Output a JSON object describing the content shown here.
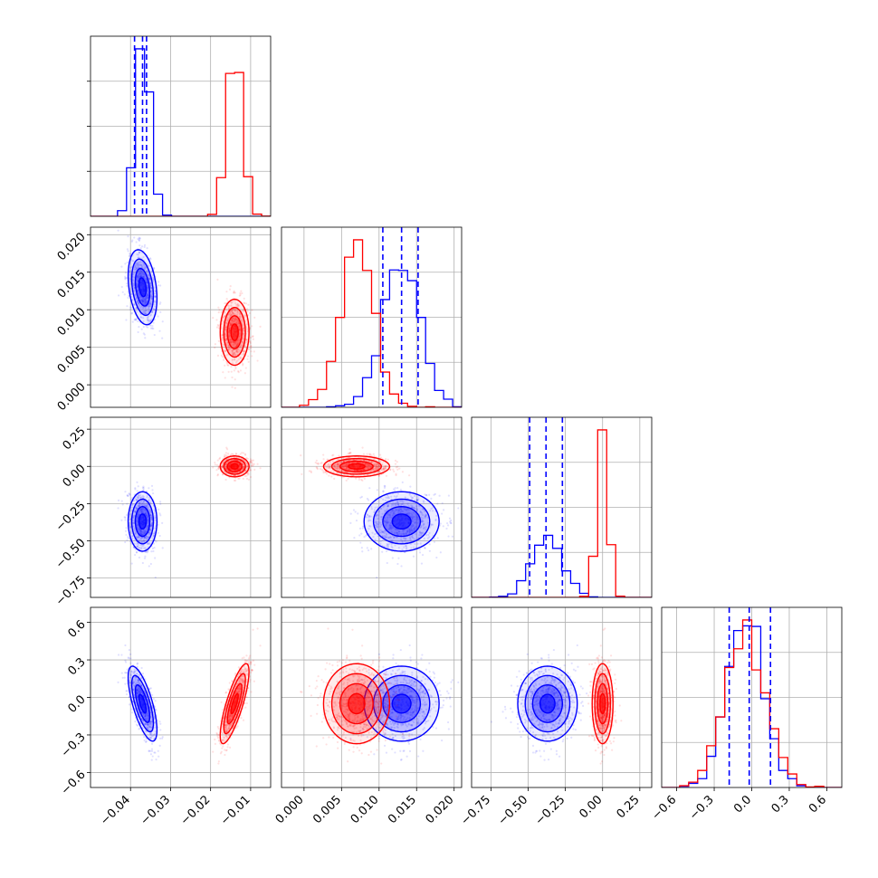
{
  "chart_data": {
    "type": "corner",
    "title": "",
    "grid": true,
    "params": [
      {
        "index": 0,
        "range": [
          -0.05,
          -0.005
        ],
        "ticks": [
          -0.04,
          -0.03,
          -0.02,
          -0.01
        ],
        "tick_labels": [
          "−0.04",
          "−0.03",
          "−0.02",
          "−0.01"
        ]
      },
      {
        "index": 1,
        "range": [
          -0.003,
          0.021
        ],
        "ticks": [
          0.0,
          0.005,
          0.01,
          0.015,
          0.02
        ],
        "tick_labels": [
          "0.000",
          "0.005",
          "0.010",
          "0.015",
          "0.020"
        ]
      },
      {
        "index": 2,
        "range": [
          -0.88,
          0.33
        ],
        "ticks": [
          -0.75,
          -0.5,
          -0.25,
          0.0,
          0.25
        ],
        "tick_labels": [
          "−0.75",
          "−0.50",
          "−0.25",
          "0.00",
          "0.25"
        ]
      },
      {
        "index": 3,
        "range": [
          -0.72,
          0.72
        ],
        "ticks": [
          -0.6,
          -0.3,
          0.0,
          0.3,
          0.6
        ],
        "tick_labels": [
          "−0.6",
          "−0.3",
          "0.0",
          "0.3",
          "0.6"
        ]
      }
    ],
    "series": [
      {
        "color": "#0000ff",
        "means": [
          -0.037,
          0.013,
          -0.37,
          -0.05
        ],
        "sigmas": [
          0.0018,
          0.0025,
          0.1,
          0.15
        ],
        "correlations": [
          [
            1,
            -0.3,
            0,
            -0.7
          ],
          [
            -0.3,
            1,
            0,
            0
          ],
          [
            0,
            0,
            1,
            0
          ],
          [
            -0.7,
            0,
            0,
            1
          ]
        ],
        "quantile_lines": [
          [
            -0.039,
            -0.037,
            -0.036
          ],
          [
            0.0105,
            0.013,
            0.0152
          ],
          [
            -0.49,
            -0.38,
            -0.27
          ],
          [
            -0.18,
            -0.02,
            0.15
          ]
        ]
      },
      {
        "color": "#ff0000",
        "means": [
          -0.014,
          0.007,
          0.0,
          -0.05
        ],
        "sigmas": [
          0.0018,
          0.0022,
          0.035,
          0.16
        ],
        "correlations": [
          [
            1,
            0,
            0,
            0.8
          ],
          [
            0,
            1,
            0,
            0
          ],
          [
            0,
            0,
            1,
            0
          ],
          [
            0.8,
            0,
            0,
            1
          ]
        ]
      }
    ]
  }
}
